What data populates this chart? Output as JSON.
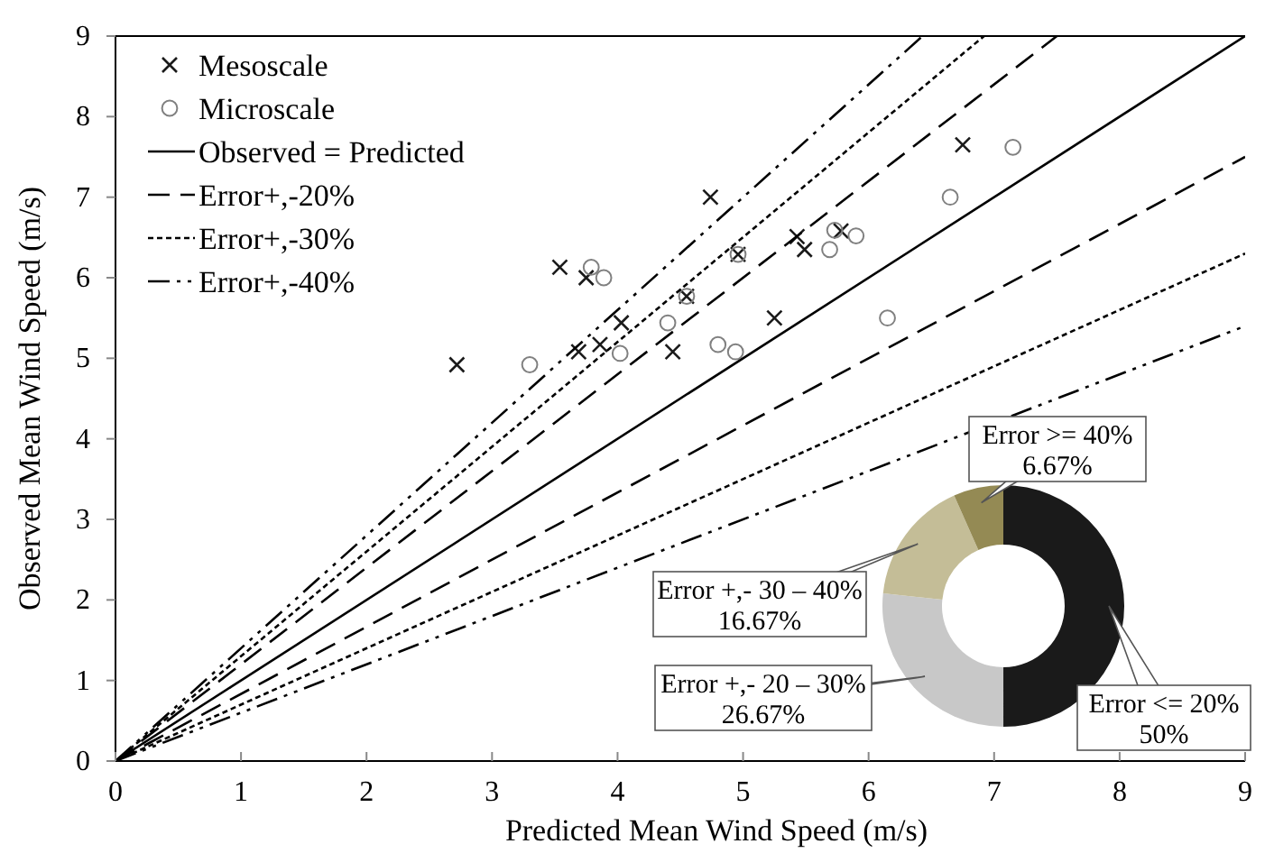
{
  "chart_data": [
    {
      "type": "scatter",
      "xlabel": "Predicted Mean Wind Speed (m/s)",
      "ylabel": "Observed Mean Wind Speed (m/s)",
      "xlim": [
        0,
        9
      ],
      "ylim": [
        0,
        9
      ],
      "xticks": [
        0,
        1,
        2,
        3,
        4,
        5,
        6,
        7,
        8,
        9
      ],
      "yticks": [
        0,
        1,
        2,
        3,
        4,
        5,
        6,
        7,
        8,
        9
      ],
      "grid": false,
      "legend": "top left",
      "series": [
        {
          "name": "Mesoscale",
          "type": "scatter",
          "marker": "cross",
          "color": "#1a1a1a",
          "x": [
            4.74,
            3.54,
            3.75,
            2.72,
            4.03,
            3.69,
            3.86,
            4.44,
            4.55,
            4.96,
            5.25,
            5.43,
            5.49,
            5.78,
            6.75
          ],
          "values": [
            7.0,
            6.13,
            6.0,
            4.92,
            5.44,
            5.08,
            5.17,
            5.08,
            5.77,
            6.29,
            5.5,
            6.51,
            6.35,
            6.58,
            7.65
          ]
        },
        {
          "name": "Microscale",
          "type": "scatter",
          "marker": "circle",
          "color": "#808080",
          "x": [
            6.65,
            3.79,
            3.89,
            3.3,
            4.4,
            4.02,
            4.55,
            4.96,
            4.8,
            4.94,
            5.73,
            5.69,
            5.9,
            6.15,
            7.15
          ],
          "values": [
            7.0,
            6.13,
            6.0,
            4.92,
            5.44,
            5.06,
            5.77,
            6.29,
            5.17,
            5.08,
            6.59,
            6.35,
            6.52,
            5.5,
            7.62
          ]
        },
        {
          "name": "Observed = Predicted",
          "type": "line",
          "line_style": "solid",
          "color": "#000000",
          "x": [
            0,
            9
          ],
          "values": [
            0,
            9
          ]
        },
        {
          "name": "Error+,-20%",
          "type": "line",
          "line_style": "dashed",
          "color": "#000000",
          "x": [
            0,
            7.5
          ],
          "values": [
            0,
            9
          ]
        },
        {
          "type": "line",
          "line_style": "dashed",
          "color": "#000000",
          "x": [
            0,
            9
          ],
          "values": [
            0,
            7.5
          ]
        },
        {
          "name": "Error+,-30%",
          "type": "line",
          "line_style": "dotted",
          "color": "#000000",
          "x": [
            0,
            6.92
          ],
          "values": [
            0,
            9
          ]
        },
        {
          "type": "line",
          "line_style": "dotted",
          "color": "#000000",
          "x": [
            0,
            9
          ],
          "values": [
            0,
            6.3
          ]
        },
        {
          "name": "Error+,-40%",
          "type": "line",
          "line_style": "dashdot",
          "color": "#000000",
          "x": [
            0,
            6.43
          ],
          "values": [
            0,
            9
          ]
        },
        {
          "type": "line",
          "line_style": "dashdot",
          "color": "#000000",
          "x": [
            0,
            9
          ],
          "values": [
            0,
            5.4
          ]
        }
      ]
    },
    {
      "type": "donut",
      "categories": [
        "Error <= 20%",
        "Error +,- 20 – 30%",
        "Error +,- 30 – 40%",
        "Error >= 40%"
      ],
      "values": [
        50,
        26.67,
        16.67,
        6.67
      ],
      "colors": [
        "#1a1a1a",
        "#c8c8c8",
        "#c4bd97",
        "#948a54"
      ],
      "value_labels": [
        "50%",
        "26.67%",
        "16.67%",
        "6.67%"
      ]
    }
  ]
}
